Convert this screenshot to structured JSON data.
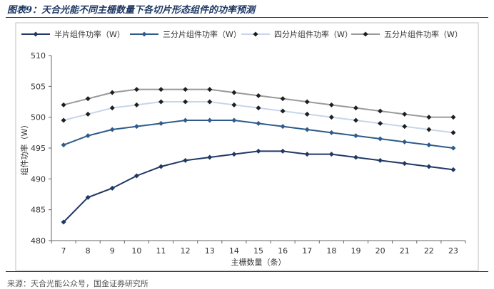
{
  "figure": {
    "title": "图表9：天合光能不同主栅数量下各切片形态组件的功率预测",
    "source": "来源：天合光能公众号，国金证券研究所"
  },
  "chart_data": {
    "type": "line",
    "x": [
      7,
      8,
      9,
      10,
      11,
      12,
      13,
      14,
      15,
      16,
      17,
      18,
      19,
      20,
      21,
      22,
      23
    ],
    "xlabel": "主栅数量（条）",
    "ylabel": "组件功率（W）",
    "ylim": [
      480,
      510
    ],
    "yticks": [
      480,
      485,
      490,
      495,
      500,
      505,
      510
    ],
    "grid": false,
    "legend_position": "top",
    "series": [
      {
        "name": "半片组件功率（W）",
        "color": "#1f3864",
        "marker": "diamond",
        "values": [
          483,
          487,
          488.5,
          490.5,
          492,
          493,
          493.5,
          494,
          494.5,
          494.5,
          494,
          494,
          493.5,
          493,
          492.5,
          492,
          491.5
        ]
      },
      {
        "name": "三分片组件功率（W）",
        "color": "#2e5b8a",
        "marker": "diamond",
        "values": [
          495.5,
          497,
          498,
          498.5,
          499,
          499.5,
          499.5,
          499.5,
          499,
          498.5,
          498,
          497.5,
          497,
          496.5,
          496,
          495.5,
          495
        ]
      },
      {
        "name": "四分片组件功率（W）",
        "color": "#c6d6ec",
        "marker": "diamond",
        "values": [
          499.5,
          500.5,
          501.5,
          502,
          502.5,
          502.5,
          502.5,
          502,
          501.5,
          501,
          500.5,
          500,
          499.5,
          499,
          498.5,
          498,
          497.5
        ]
      },
      {
        "name": "五分片组件功率（W）",
        "color": "#9a9a9a",
        "marker": "diamond",
        "values": [
          502,
          503,
          504,
          504.5,
          504.5,
          504.5,
          504.5,
          504,
          503.5,
          503,
          502.5,
          502,
          501.5,
          501,
          500.5,
          500,
          500
        ]
      }
    ]
  }
}
